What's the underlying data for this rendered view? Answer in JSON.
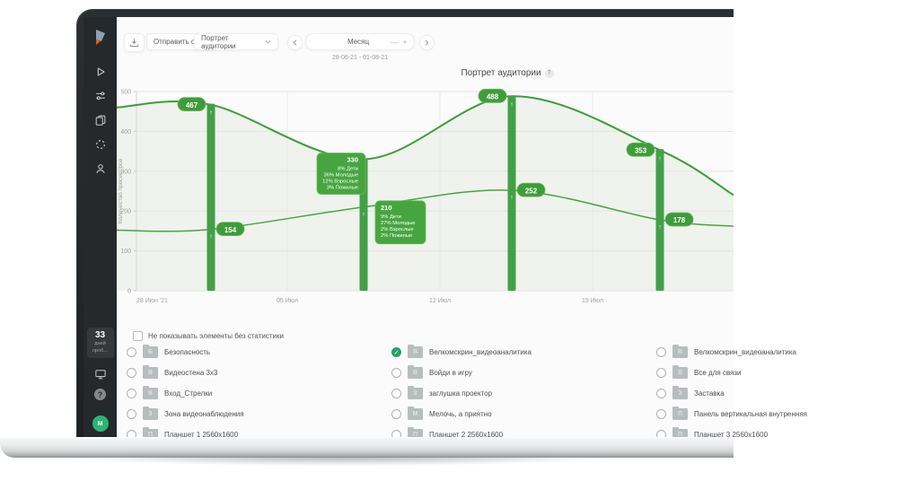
{
  "sidebar": {
    "logo_icon": "brand-logo",
    "nav_icons": [
      "play-icon",
      "equalizer-icon",
      "documents-icon",
      "spinner-icon",
      "user-icon"
    ],
    "trial": {
      "days": "33",
      "caption_line1": "дней",
      "caption_line2": "проб..."
    },
    "bottom_icons": [
      "display-icon",
      "help-icon"
    ],
    "help_glyph": "?",
    "avatar_initials": "М"
  },
  "toolbar": {
    "download_icon": "download-icon",
    "send_report_label": "Отправить отчёт",
    "report_dropdown_value": "Портрет аудитории",
    "period_value": "Месяц",
    "zoom_out_glyph": "—",
    "zoom_in_glyph": "+",
    "prev_icon": "chevron-left-icon",
    "next_icon": "chevron-right-icon",
    "date_range": "28-06-21 - 01-08-21"
  },
  "chart": {
    "title": "Портрет аудитории",
    "info_glyph": "?"
  },
  "chart_data": {
    "type": "line",
    "title": "Портрет аудитории",
    "ylabel": "Количество просмотров",
    "ylim": [
      0,
      500
    ],
    "y_ticks": [
      500,
      400,
      300,
      200,
      100,
      0
    ],
    "x_tick_labels": [
      "28 Июн '21",
      "05 Июл",
      "12 Июл",
      "19 Июл"
    ],
    "grid": true,
    "legend": false,
    "series": [
      {
        "name": "series-1",
        "color": "#3a9e39",
        "values": [
          467,
          330,
          488,
          353
        ],
        "edge_start": 460,
        "edge_end": 240
      },
      {
        "name": "series-2",
        "color": "#45a542",
        "values": [
          154,
          210,
          252,
          178
        ],
        "edge_start": 152,
        "edge_end": 162
      }
    ],
    "tooltips": [
      {
        "bar_index": 1,
        "series_index": 0,
        "value": "330",
        "breakdown": [
          "8% Дети",
          "36% Молодые",
          "12% Взрослые",
          "3% Пожилые"
        ]
      },
      {
        "bar_index": 1,
        "series_index": 1,
        "value": "210",
        "breakdown": [
          "9% Дети",
          "27% Молодые",
          "2% Взрослые",
          "2% Пожилые"
        ]
      }
    ]
  },
  "filters": {
    "hide_without_stats_label": "Не показывать элементы без статистики",
    "hide_without_stats_checked": false,
    "columns": [
      {
        "items": [
          {
            "label": "Безопасность",
            "checked": false
          },
          {
            "label": "Видеостена 3x3",
            "checked": false
          },
          {
            "label": "Вход_Стрелки",
            "checked": false
          },
          {
            "label": "Зона видеонаблюдения",
            "checked": false
          },
          {
            "label": "Планшет 1 2560x1600",
            "checked": false
          }
        ]
      },
      {
        "items": [
          {
            "label": "Велкомскрин_видеоаналитика",
            "checked": true
          },
          {
            "label": "Войди в игру",
            "checked": false
          },
          {
            "label": "заглушка проектор",
            "checked": false
          },
          {
            "label": "Мелочь, а приятно",
            "checked": false
          },
          {
            "label": "Планшет 2 2560x1600",
            "checked": false
          }
        ]
      },
      {
        "items": [
          {
            "label": "Велкомскрин_видеоаналитика",
            "checked": false
          },
          {
            "label": "Все для связи",
            "checked": false
          },
          {
            "label": "Заставка",
            "checked": false
          },
          {
            "label": "Панель вертикальная внутренняя",
            "checked": false
          },
          {
            "label": "Планшет 3 2560x1600",
            "checked": false
          }
        ]
      }
    ]
  },
  "colors": {
    "accent_green": "#43a047",
    "badge_green": "#3f9c3a",
    "badge_stroke": "#68b95e",
    "tooltip_green": "#47a53f",
    "checked_green": "#27a368",
    "area_fill": "#f0f2ed",
    "grid_line": "#e3e3e3",
    "axis_text": "#a0a0a0",
    "sidebar_bg": "#26292c",
    "avatar_green": "#2bb673"
  }
}
